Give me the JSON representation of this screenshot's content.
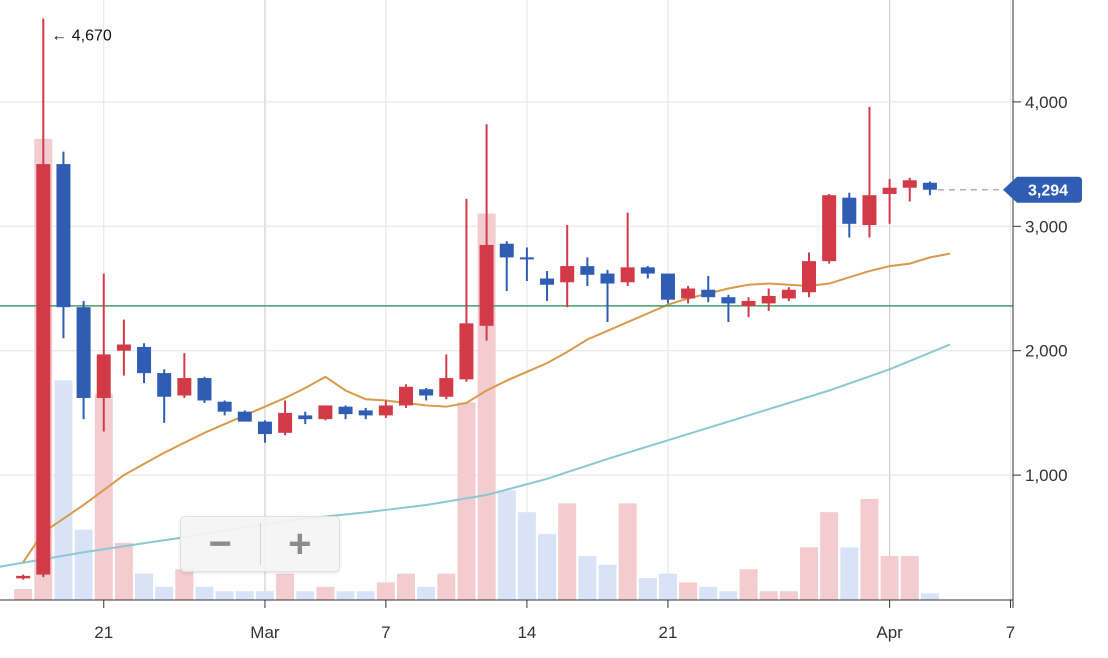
{
  "chart_data": {
    "type": "candlestick",
    "x_tick_labels": [
      "21",
      "Mar",
      "7",
      "14",
      "21",
      "Apr",
      "7"
    ],
    "y_tick_labels": [
      "1,000",
      "2,000",
      "3,000",
      "4,000"
    ],
    "y_ticks": [
      1000,
      2000,
      3000,
      4000
    ],
    "ylim": [
      0,
      4800
    ],
    "grid": true,
    "max_annotation": "← 4,670",
    "max_value": 4670,
    "last_price": 3294,
    "last_price_label": "3,294",
    "horizontal_line_value": 2360,
    "colors": {
      "up": "#d33a48",
      "down": "#2f5db3",
      "up_volume": "#f2cccf",
      "down_volume": "#d9e3f8",
      "ma_short": "#d89a4a",
      "ma_long": "#8cc7d3",
      "hline": "#4a9a6a",
      "grid": "#e8e8e8",
      "last_badge": "#2f5db3"
    },
    "candles": [
      {
        "date": "Feb 16",
        "open": 170,
        "high": 200,
        "low": 160,
        "close": 190,
        "volume": 2.5
      },
      {
        "date": "Feb 17",
        "open": 200,
        "high": 4670,
        "low": 180,
        "close": 3500,
        "volume": 105
      },
      {
        "date": "Feb 18",
        "open": 3500,
        "high": 3600,
        "low": 2100,
        "close": 2350,
        "volume": 50
      },
      {
        "date": "Feb 19",
        "open": 2350,
        "high": 2400,
        "low": 1450,
        "close": 1620,
        "volume": 16
      },
      {
        "date": "Feb 20",
        "open": 1620,
        "high": 2620,
        "low": 1350,
        "close": 1970,
        "volume": 47
      },
      {
        "date": "Feb 21",
        "open": 2000,
        "high": 2250,
        "low": 1800,
        "close": 2050,
        "volume": 13
      },
      {
        "date": "Feb 22",
        "open": 2030,
        "high": 2060,
        "low": 1740,
        "close": 1820,
        "volume": 6
      },
      {
        "date": "Feb 23",
        "open": 1820,
        "high": 1850,
        "low": 1420,
        "close": 1630,
        "volume": 3
      },
      {
        "date": "Feb 24",
        "open": 1640,
        "high": 1980,
        "low": 1620,
        "close": 1780,
        "volume": 7
      },
      {
        "date": "Feb 25",
        "open": 1780,
        "high": 1790,
        "low": 1580,
        "close": 1600,
        "volume": 3
      },
      {
        "date": "Feb 26",
        "open": 1590,
        "high": 1600,
        "low": 1480,
        "close": 1510,
        "volume": 2
      },
      {
        "date": "Feb 27",
        "open": 1510,
        "high": 1520,
        "low": 1430,
        "close": 1430,
        "volume": 2
      },
      {
        "date": "Feb 28",
        "open": 1430,
        "high": 1440,
        "low": 1260,
        "close": 1330,
        "volume": 2
      },
      {
        "date": "Mar 1",
        "open": 1340,
        "high": 1600,
        "low": 1320,
        "close": 1500,
        "volume": 6
      },
      {
        "date": "Mar 2",
        "open": 1480,
        "high": 1510,
        "low": 1410,
        "close": 1450,
        "volume": 2
      },
      {
        "date": "Mar 3",
        "open": 1450,
        "high": 1560,
        "low": 1440,
        "close": 1560,
        "volume": 3
      },
      {
        "date": "Mar 4",
        "open": 1550,
        "high": 1560,
        "low": 1450,
        "close": 1490,
        "volume": 2
      },
      {
        "date": "Mar 5",
        "open": 1520,
        "high": 1540,
        "low": 1450,
        "close": 1480,
        "volume": 2
      },
      {
        "date": "Mar 6",
        "open": 1480,
        "high": 1600,
        "low": 1460,
        "close": 1560,
        "volume": 4
      },
      {
        "date": "Mar 7",
        "open": 1560,
        "high": 1730,
        "low": 1540,
        "close": 1710,
        "volume": 6
      },
      {
        "date": "Mar 8",
        "open": 1690,
        "high": 1700,
        "low": 1600,
        "close": 1640,
        "volume": 3
      },
      {
        "date": "Mar 9",
        "open": 1630,
        "high": 1970,
        "low": 1610,
        "close": 1780,
        "volume": 6
      },
      {
        "date": "Mar 10",
        "open": 1770,
        "high": 3220,
        "low": 1750,
        "close": 2220,
        "volume": 45
      },
      {
        "date": "Mar 11",
        "open": 2200,
        "high": 3820,
        "low": 2080,
        "close": 2850,
        "volume": 88
      },
      {
        "date": "Mar 12",
        "open": 2860,
        "high": 2880,
        "low": 2480,
        "close": 2750,
        "volume": 25
      },
      {
        "date": "Mar 13",
        "open": 2750,
        "high": 2830,
        "low": 2560,
        "close": 2740,
        "volume": 20
      },
      {
        "date": "Mar 14",
        "open": 2580,
        "high": 2640,
        "low": 2400,
        "close": 2530,
        "volume": 15
      },
      {
        "date": "Mar 15",
        "open": 2550,
        "high": 3010,
        "low": 2350,
        "close": 2680,
        "volume": 22
      },
      {
        "date": "Mar 16",
        "open": 2680,
        "high": 2750,
        "low": 2520,
        "close": 2610,
        "volume": 10
      },
      {
        "date": "Mar 17",
        "open": 2620,
        "high": 2650,
        "low": 2230,
        "close": 2540,
        "volume": 8
      },
      {
        "date": "Mar 18",
        "open": 2550,
        "high": 3110,
        "low": 2520,
        "close": 2670,
        "volume": 22
      },
      {
        "date": "Mar 19",
        "open": 2670,
        "high": 2680,
        "low": 2580,
        "close": 2620,
        "volume": 5
      },
      {
        "date": "Mar 20",
        "open": 2620,
        "high": 2620,
        "low": 2380,
        "close": 2410,
        "volume": 6
      },
      {
        "date": "Mar 21",
        "open": 2420,
        "high": 2520,
        "low": 2380,
        "close": 2500,
        "volume": 4
      },
      {
        "date": "Mar 22",
        "open": 2490,
        "high": 2600,
        "low": 2390,
        "close": 2430,
        "volume": 3
      },
      {
        "date": "Mar 23",
        "open": 2430,
        "high": 2450,
        "low": 2230,
        "close": 2380,
        "volume": 2
      },
      {
        "date": "Mar 24",
        "open": 2360,
        "high": 2430,
        "low": 2270,
        "close": 2400,
        "volume": 7
      },
      {
        "date": "Mar 25",
        "open": 2380,
        "high": 2500,
        "low": 2320,
        "close": 2440,
        "volume": 2
      },
      {
        "date": "Mar 26",
        "open": 2420,
        "high": 2510,
        "low": 2400,
        "close": 2490,
        "volume": 2
      },
      {
        "date": "Mar 27",
        "open": 2470,
        "high": 2790,
        "low": 2430,
        "close": 2720,
        "volume": 12
      },
      {
        "date": "Mar 28",
        "open": 2720,
        "high": 3260,
        "low": 2700,
        "close": 3250,
        "volume": 20
      },
      {
        "date": "Mar 29",
        "open": 3230,
        "high": 3270,
        "low": 2910,
        "close": 3020,
        "volume": 12
      },
      {
        "date": "Mar 30",
        "open": 3010,
        "high": 3960,
        "low": 2910,
        "close": 3250,
        "volume": 23
      },
      {
        "date": "Mar 31",
        "open": 3260,
        "high": 3380,
        "low": 3020,
        "close": 3310,
        "volume": 10
      },
      {
        "date": "Apr 1",
        "open": 3310,
        "high": 3390,
        "low": 3200,
        "close": 3370,
        "volume": 10
      },
      {
        "date": "Apr 2",
        "open": 3350,
        "high": 3360,
        "low": 3250,
        "close": 3294,
        "volume": 1.5
      }
    ],
    "ma_short_line": [
      [
        17,
        300
      ],
      [
        18,
        540
      ],
      [
        19,
        650
      ],
      [
        20,
        760
      ],
      [
        21,
        880
      ],
      [
        22,
        1000
      ],
      [
        23,
        1090
      ],
      [
        24,
        1180
      ],
      [
        25,
        1260
      ],
      [
        26,
        1340
      ],
      [
        27,
        1410
      ],
      [
        28,
        1480
      ],
      [
        29,
        1550
      ],
      [
        30,
        1620
      ],
      [
        31,
        1700
      ],
      [
        32,
        1790
      ],
      [
        33,
        1680
      ],
      [
        34,
        1610
      ],
      [
        35,
        1600
      ],
      [
        36,
        1580
      ],
      [
        37,
        1560
      ],
      [
        38,
        1550
      ],
      [
        39,
        1580
      ],
      [
        40,
        1680
      ],
      [
        41,
        1760
      ],
      [
        42,
        1830
      ],
      [
        43,
        1900
      ],
      [
        44,
        1990
      ],
      [
        45,
        2090
      ],
      [
        46,
        2160
      ],
      [
        47,
        2230
      ],
      [
        48,
        2300
      ],
      [
        49,
        2370
      ],
      [
        50,
        2420
      ],
      [
        51,
        2460
      ],
      [
        52,
        2500
      ],
      [
        53,
        2530
      ],
      [
        54,
        2540
      ],
      [
        55,
        2530
      ],
      [
        56,
        2520
      ],
      [
        57,
        2540
      ],
      [
        58,
        2590
      ],
      [
        59,
        2640
      ],
      [
        60,
        2680
      ],
      [
        61,
        2700
      ],
      [
        62,
        2750
      ],
      [
        63,
        2780
      ]
    ],
    "ma_long_line": [
      [
        15,
        240
      ],
      [
        20,
        380
      ],
      [
        25,
        500
      ],
      [
        28,
        580
      ],
      [
        31,
        650
      ],
      [
        34,
        700
      ],
      [
        37,
        760
      ],
      [
        40,
        840
      ],
      [
        43,
        970
      ],
      [
        46,
        1130
      ],
      [
        50,
        1330
      ],
      [
        54,
        1530
      ],
      [
        57,
        1680
      ],
      [
        60,
        1850
      ],
      [
        63,
        2050
      ]
    ]
  },
  "zoom_controls": {
    "zoom_out_label": "−",
    "zoom_in_label": "+"
  }
}
